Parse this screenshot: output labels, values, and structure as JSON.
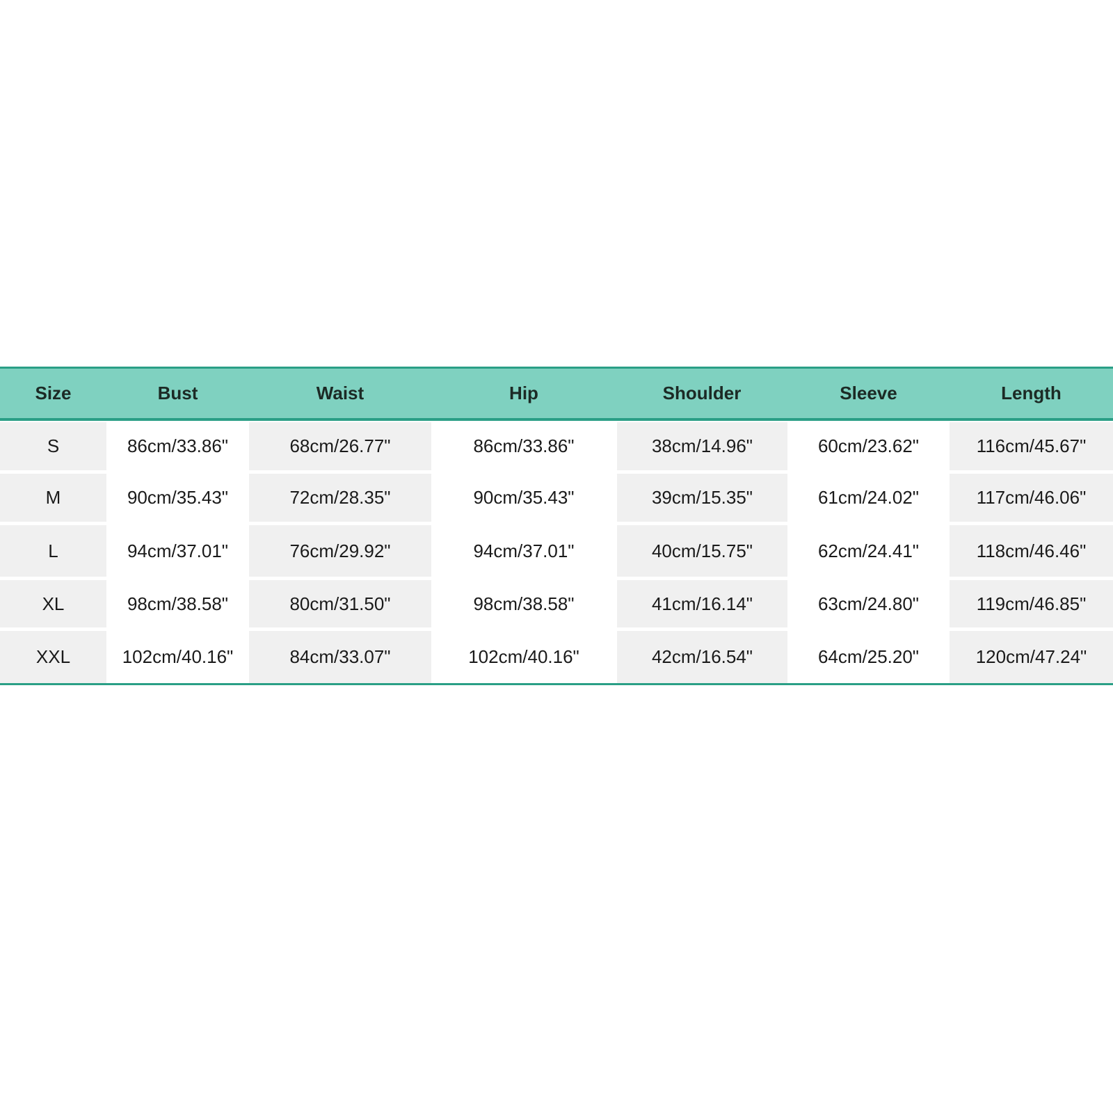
{
  "colors": {
    "header_bg": "#7fd1c0",
    "border": "#2a9f86",
    "shaded_cell": "#f0f0f0"
  },
  "table": {
    "headers": [
      "Size",
      "Bust",
      "Waist",
      "Hip",
      "Shoulder",
      "Sleeve",
      "Length"
    ],
    "rows": [
      [
        "S",
        "86cm/33.86\"",
        "68cm/26.77\"",
        "86cm/33.86\"",
        "38cm/14.96\"",
        "60cm/23.62\"",
        "116cm/45.67\""
      ],
      [
        "M",
        "90cm/35.43\"",
        "72cm/28.35\"",
        "90cm/35.43\"",
        "39cm/15.35\"",
        "61cm/24.02\"",
        "117cm/46.06\""
      ],
      [
        "L",
        "94cm/37.01\"",
        "76cm/29.92\"",
        "94cm/37.01\"",
        "40cm/15.75\"",
        "62cm/24.41\"",
        "118cm/46.46\""
      ],
      [
        "XL",
        "98cm/38.58\"",
        "80cm/31.50\"",
        "98cm/38.58\"",
        "41cm/16.14\"",
        "63cm/24.80\"",
        "119cm/46.85\""
      ],
      [
        "XXL",
        "102cm/40.16\"",
        "84cm/33.07\"",
        "102cm/40.16\"",
        "42cm/16.54\"",
        "64cm/25.20\"",
        "120cm/47.24\""
      ]
    ]
  }
}
